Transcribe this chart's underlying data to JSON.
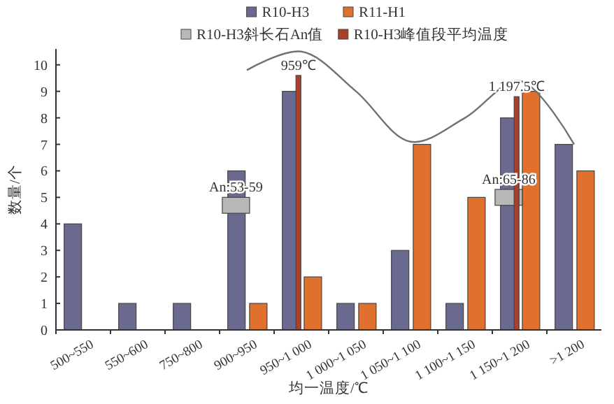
{
  "chart_data": {
    "type": "bar",
    "xlabel": "均一温度/℃",
    "ylabel": "数量/个",
    "categories": [
      "500~550",
      "550~600",
      "750~800",
      "900~950",
      "950~1 000",
      "1 000~1 050",
      "1 050~1 100",
      "1 100~1 150",
      "1 150~1 200",
      ">1 200"
    ],
    "series": [
      {
        "name": "R10-H3",
        "color": "#6a6990",
        "values": [
          4,
          1,
          1,
          6,
          9,
          1,
          3,
          1,
          8,
          7
        ]
      },
      {
        "name": "R11-H1",
        "color": "#e0702e",
        "values": [
          null,
          null,
          null,
          1,
          2,
          1,
          7,
          5,
          9,
          6
        ]
      },
      {
        "name": "R10-H3斜长石An值",
        "color": "#b8b8b8",
        "base": [
          null,
          null,
          null,
          4.4,
          null,
          null,
          null,
          null,
          4.7,
          null
        ],
        "values": [
          null,
          null,
          null,
          0.6,
          null,
          null,
          null,
          null,
          0.6,
          null
        ]
      },
      {
        "name": "R10-H3峰值段平均温度",
        "color": "#a8402c",
        "values": [
          null,
          null,
          null,
          null,
          9.6,
          null,
          null,
          null,
          8.8,
          null
        ]
      },
      {
        "type": "line",
        "color": "#707078",
        "values": [
          null,
          null,
          null,
          9.8,
          10.5,
          9,
          7.1,
          8,
          9.4,
          7
        ]
      }
    ],
    "ylim": [
      0,
      10.6
    ],
    "yticks": [
      0,
      1,
      2,
      3,
      4,
      5,
      6,
      7,
      8,
      9,
      10
    ],
    "grid": false,
    "legend": "top",
    "annotations": [
      "An:53-59",
      "An:65-86",
      "959℃",
      "1 197.5℃"
    ]
  }
}
